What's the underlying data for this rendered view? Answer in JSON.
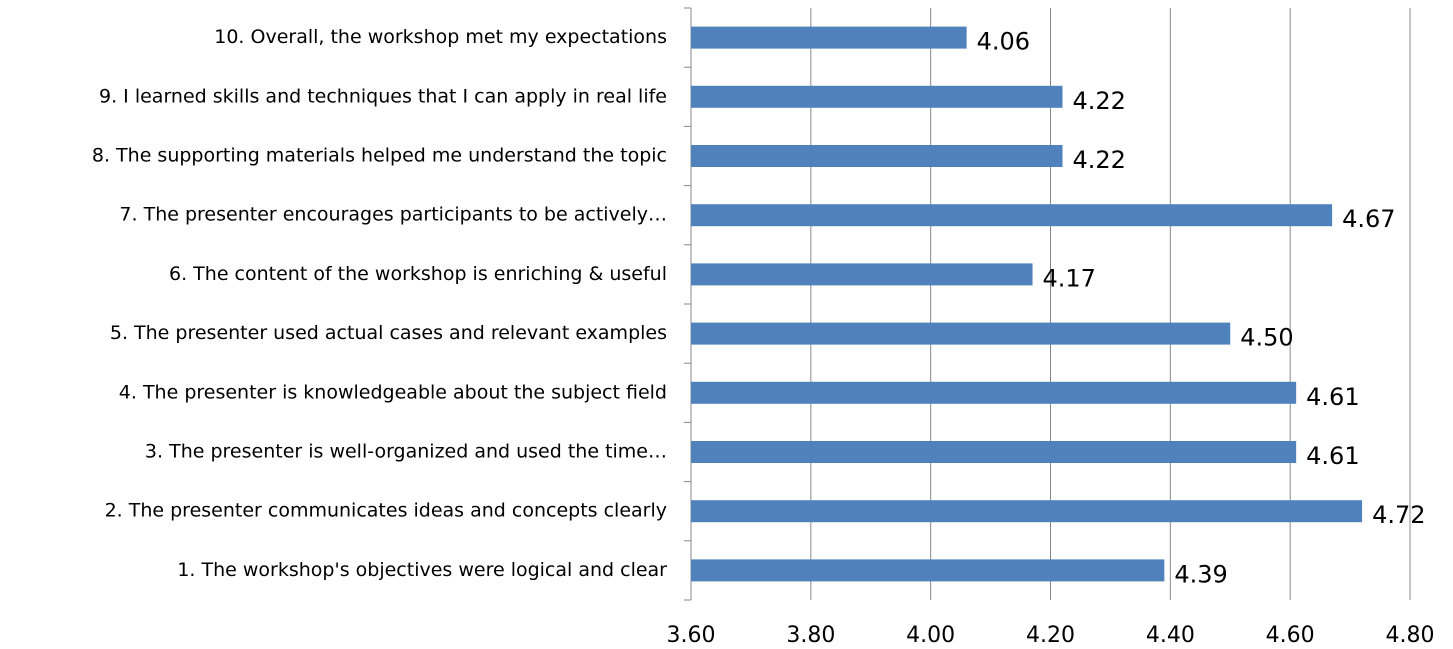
{
  "chart_data": {
    "type": "bar",
    "orientation": "horizontal",
    "categories": [
      "1. The workshop's objectives were logical and clear",
      "2. The presenter communicates ideas and concepts clearly",
      "3. The presenter is well-organized and used the time…",
      "4. The presenter is knowledgeable about the subject field",
      "5. The presenter used actual cases and relevant examples",
      "6. The content of the workshop is enriching & useful",
      "7. The presenter encourages participants to be actively…",
      "8. The supporting materials helped me understand the topic",
      "9. I learned skills and techniques that I can apply in real life",
      "10. Overall, the workshop met my expectations"
    ],
    "values": [
      4.39,
      4.72,
      4.61,
      4.61,
      4.5,
      4.17,
      4.67,
      4.22,
      4.22,
      4.06
    ],
    "value_labels": [
      "4.39",
      "4.72",
      "4.61",
      "4.61",
      "4.50",
      "4.17",
      "4.67",
      "4.22",
      "4.22",
      "4.06"
    ],
    "color": "#4f81bd",
    "xlim": [
      3.6,
      4.8
    ],
    "xticks": [
      {
        "value": 3.6,
        "label": "3.60"
      },
      {
        "value": 3.8,
        "label": "3.80"
      },
      {
        "value": 4.0,
        "label": "4.00"
      },
      {
        "value": 4.2,
        "label": "4.20"
      },
      {
        "value": 4.4,
        "label": "4.40"
      },
      {
        "value": 4.6,
        "label": "4.60"
      },
      {
        "value": 4.8,
        "label": "4.80"
      }
    ],
    "grid": true
  }
}
